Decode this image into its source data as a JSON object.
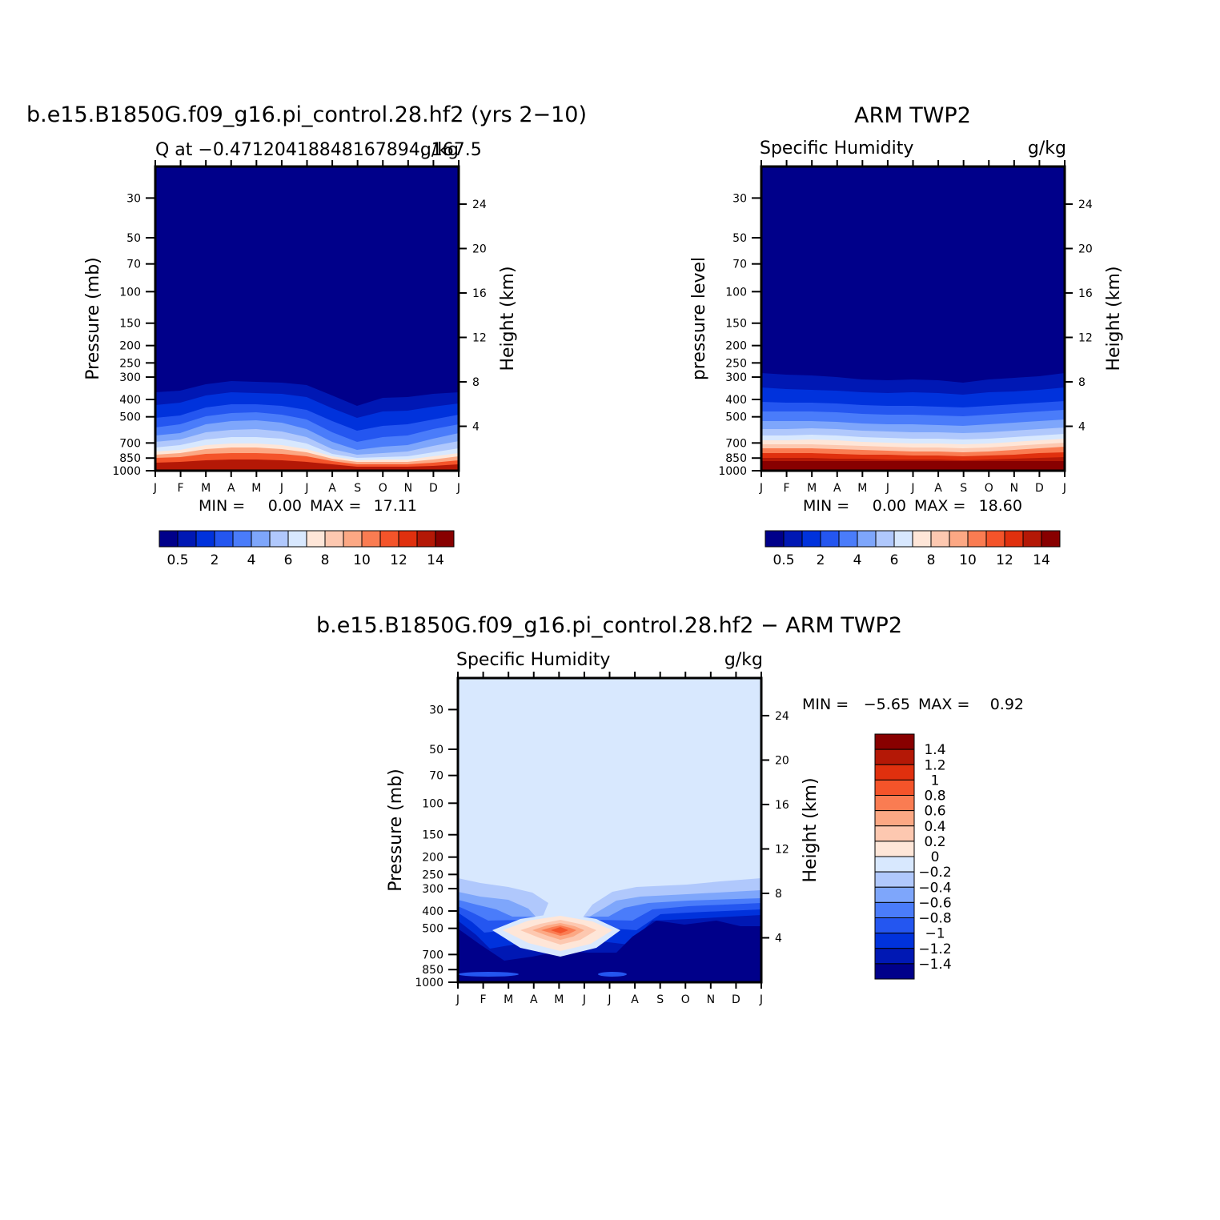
{
  "months": [
    "J",
    "F",
    "M",
    "A",
    "M",
    "J",
    "J",
    "A",
    "S",
    "O",
    "N",
    "D",
    "J"
  ],
  "pressure_ticks": [
    "30",
    "50",
    "70",
    "100",
    "150",
    "200",
    "250",
    "300",
    "400",
    "500",
    "700",
    "850",
    "1000"
  ],
  "height_ticks": [
    "24",
    "20",
    "16",
    "12",
    "8",
    "4"
  ],
  "seq_palette": [
    "#00008a",
    "#0018b4",
    "#0032dc",
    "#2456f0",
    "#4a7cfa",
    "#7ea6fb",
    "#b0c8fc",
    "#d8e8fe",
    "#fee6d8",
    "#fdc8b0",
    "#fca884",
    "#fa7c52",
    "#f4542a",
    "#e0300e",
    "#b41806",
    "#880000"
  ],
  "seq_labels": [
    "0.5",
    "2",
    "4",
    "6",
    "8",
    "10",
    "12",
    "14"
  ],
  "diff_palette": [
    "#880000",
    "#b41806",
    "#e0300e",
    "#f4542a",
    "#fa7c52",
    "#fca884",
    "#fdc8b0",
    "#fee6d8",
    "#d8e8fe",
    "#b0c8fc",
    "#7ea6fb",
    "#4a7cfa",
    "#2456f0",
    "#0032dc",
    "#0018b4",
    "#00008a"
  ],
  "diff_labels": [
    "1.4",
    "1.2",
    "1",
    "0.8",
    "0.6",
    "0.4",
    "0.2",
    "0",
    "−0.2",
    "−0.4",
    "−0.6",
    "−0.8",
    "−1",
    "−1.2",
    "−1.4"
  ],
  "chart_data": [
    {
      "type": "heatmap",
      "title": "b.e15.B1850G.f09_g16.pi_control.28.hf2 (yrs 2−10)",
      "left_label": "Q at −0.47120418848167894, 167.5",
      "right_label": "g/kg",
      "ylabel": "Pressure (mb)",
      "ylabel_right": "Height (km)",
      "min_label": "MIN =",
      "min_value": "0.00",
      "max_label": "MAX =",
      "max_value": "17.11",
      "y_scale": "log",
      "ylim": [
        1000,
        20
      ],
      "contour_top_pressure_mb": [
        390,
        385,
        360,
        350,
        355,
        365,
        375,
        450,
        530,
        470,
        460,
        420,
        400
      ]
    },
    {
      "type": "heatmap",
      "title": "ARM TWP2",
      "left_label": "Specific Humidity",
      "right_label": "g/kg",
      "ylabel": "pressure level",
      "ylabel_right": "Height (km)",
      "min_label": "MIN =",
      "min_value": "0.00",
      "max_label": "MAX =",
      "max_value": "18.60",
      "y_scale": "log",
      "ylim": [
        1000,
        20
      ],
      "contour_top_pressure_mb": [
        300,
        305,
        310,
        320,
        330,
        335,
        330,
        335,
        345,
        325,
        315,
        310,
        300
      ]
    },
    {
      "type": "heatmap",
      "title": "b.e15.B1850G.f09_g16.pi_control.28.hf2 − ARM TWP2",
      "left_label": "Specific Humidity",
      "right_label": "g/kg",
      "ylabel": "Pressure (mb)",
      "ylabel_right": "Height (km)",
      "min_label": "MIN =",
      "min_value": "−5.65",
      "max_label": "MAX =",
      "max_value": "0.92",
      "y_scale": "log",
      "ylim": [
        1000,
        20
      ],
      "positive_anomaly": {
        "month": "M",
        "pressure_mb": 520,
        "max": 0.92
      }
    }
  ]
}
